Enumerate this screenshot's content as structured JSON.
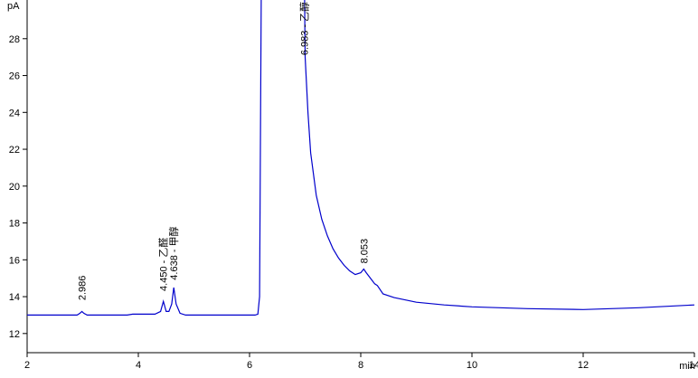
{
  "chart_data": {
    "type": "line",
    "y_label": "pA",
    "x_label": "min",
    "xlim": [
      2,
      14
    ],
    "xticks": [
      2,
      4,
      6,
      8,
      10,
      12,
      14
    ],
    "ylim": [
      10.96,
      30.1
    ],
    "yticks": [
      12,
      14,
      16,
      18,
      20,
      22,
      24,
      26,
      28
    ],
    "series": [
      {
        "color": "#0000cc",
        "x": [
          2,
          2.9,
          2.95,
          2.986,
          3.02,
          3.08,
          3.8,
          3.9,
          4.3,
          4.4,
          4.45,
          4.5,
          4.55,
          4.6,
          4.638,
          4.68,
          4.75,
          4.85,
          6.1,
          6.15,
          6.18,
          6.21,
          6.22,
          6.98,
          6.99,
          7.0,
          7.05,
          7.1,
          7.2,
          7.3,
          7.4,
          7.5,
          7.6,
          7.7,
          7.8,
          7.9,
          8.0,
          8.053,
          8.1,
          8.2,
          8.25,
          8.3,
          8.4,
          8.6,
          9.0,
          9.5,
          10,
          11,
          12,
          13,
          14
        ],
        "values": [
          13.0,
          13.0,
          13.1,
          13.2,
          13.1,
          13.0,
          13.0,
          13.05,
          13.05,
          13.2,
          13.75,
          13.2,
          13.2,
          13.6,
          14.5,
          13.6,
          13.1,
          13.0,
          13.0,
          13.05,
          14,
          30.1,
          null,
          null,
          30.1,
          27,
          24,
          21.8,
          19.5,
          18.2,
          17.3,
          16.6,
          16.1,
          15.7,
          15.4,
          15.2,
          15.3,
          15.5,
          15.3,
          14.9,
          14.7,
          14.6,
          14.15,
          13.95,
          13.7,
          13.55,
          13.45,
          13.35,
          13.3,
          13.4,
          13.55
        ]
      }
    ],
    "annotations": [
      {
        "text": "2.986",
        "x": 2.986,
        "y": 13.8
      },
      {
        "text": "4.450 - 乙醛",
        "x": 4.45,
        "y": 14.3
      },
      {
        "text": "4.638 - 甲醇",
        "x": 4.638,
        "y": 14.9
      },
      {
        "text": "6.983 - 乙醇",
        "x": 6.983,
        "y": 27.1
      },
      {
        "text": "8.053",
        "x": 8.053,
        "y": 15.8
      }
    ]
  }
}
